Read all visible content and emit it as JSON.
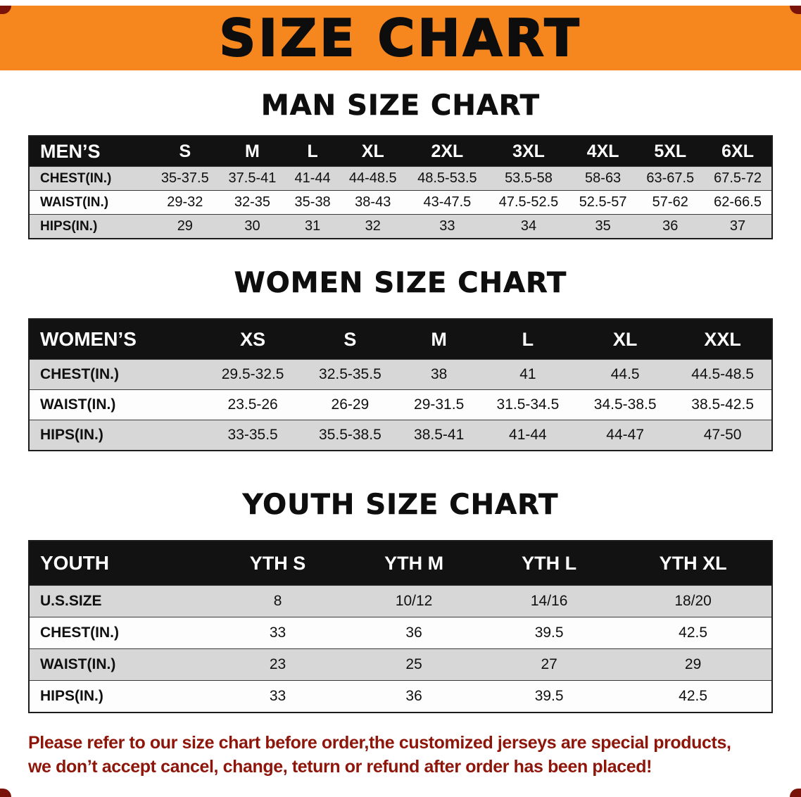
{
  "colors": {
    "banner_bg": "#F6871F",
    "table_header_bg": "#121212",
    "row_alt_bg": "#D7D7D7",
    "footer_text": "#8E1509"
  },
  "banner": {
    "title": "SIZE CHART"
  },
  "men": {
    "heading": "MAN SIZE CHART",
    "table": {
      "header": [
        "MEN’S",
        "S",
        "M",
        "L",
        "XL",
        "2XL",
        "3XL",
        "4XL",
        "5XL",
        "6XL"
      ],
      "rows": [
        [
          "CHEST(IN.)",
          "35-37.5",
          "37.5-41",
          "41-44",
          "44-48.5",
          "48.5-53.5",
          "53.5-58",
          "58-63",
          "63-67.5",
          "67.5-72"
        ],
        [
          "WAIST(IN.)",
          "29-32",
          "32-35",
          "35-38",
          "38-43",
          "43-47.5",
          "47.5-52.5",
          "52.5-57",
          "57-62",
          "62-66.5"
        ],
        [
          "HIPS(IN.)",
          "29",
          "30",
          "31",
          "32",
          "33",
          "34",
          "35",
          "36",
          "37"
        ]
      ]
    }
  },
  "women": {
    "heading": "WOMEN SIZE CHART",
    "table": {
      "header": [
        "WOMEN’S",
        "XS",
        "S",
        "M",
        "L",
        "XL",
        "XXL"
      ],
      "rows": [
        [
          "CHEST(IN.)",
          "29.5-32.5",
          "32.5-35.5",
          "38",
          "41",
          "44.5",
          "44.5-48.5"
        ],
        [
          "WAIST(IN.)",
          "23.5-26",
          "26-29",
          "29-31.5",
          "31.5-34.5",
          "34.5-38.5",
          "38.5-42.5"
        ],
        [
          "HIPS(IN.)",
          "33-35.5",
          "35.5-38.5",
          "38.5-41",
          "41-44",
          "44-47",
          "47-50"
        ]
      ]
    }
  },
  "youth": {
    "heading": "YOUTH SIZE CHART",
    "table": {
      "header": [
        "YOUTH",
        "YTH S",
        "YTH M",
        "YTH L",
        "YTH XL"
      ],
      "rows": [
        [
          "U.S.SIZE",
          "8",
          "10/12",
          "14/16",
          "18/20"
        ],
        [
          "CHEST(IN.)",
          "33",
          "36",
          "39.5",
          "42.5"
        ],
        [
          "WAIST(IN.)",
          "23",
          "25",
          "27",
          "29"
        ],
        [
          "HIPS(IN.)",
          "33",
          "36",
          "39.5",
          "42.5"
        ]
      ]
    }
  },
  "footer": {
    "line1": "Please refer to our size chart before order,the customized jerseys are special products,",
    "line2": "we don’t accept cancel, change, teturn or refund after order has been placed!"
  }
}
